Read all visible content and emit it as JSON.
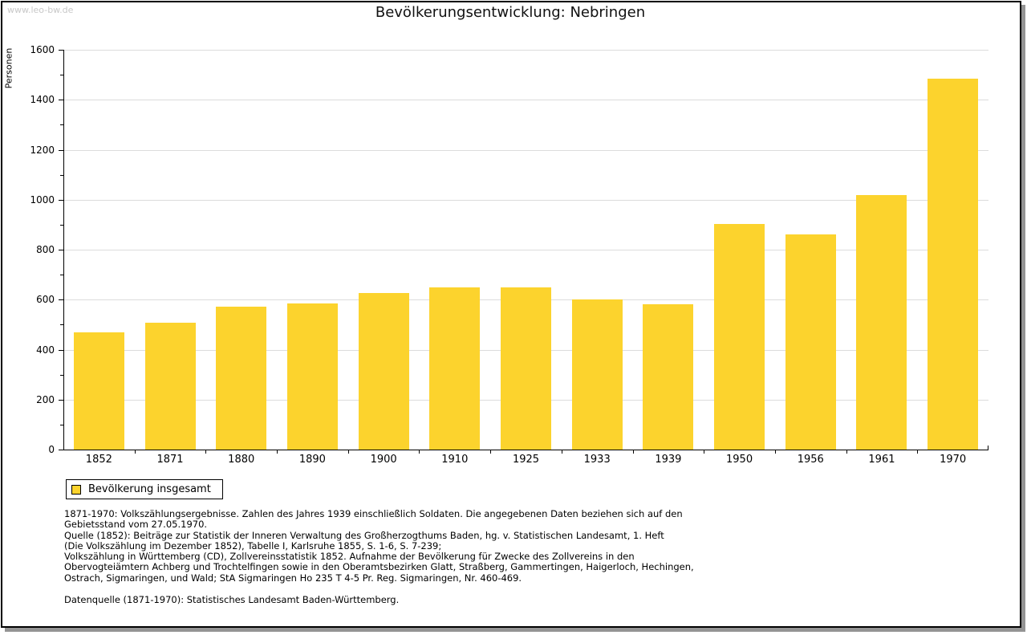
{
  "watermark": "www.leo-bw.de",
  "title": "Bevölkerungsentwicklung: Nebringen",
  "chart_data": {
    "type": "bar",
    "title": "Bevölkerungsentwicklung: Nebringen",
    "xlabel": "",
    "ylabel": "Personen",
    "ylim": [
      0,
      1600
    ],
    "ytick_major": 200,
    "ytick_minor": 100,
    "grid": "horizontal major gridlines on",
    "legend_position": "bottom-left, boxed",
    "categories": [
      "1852",
      "1871",
      "1880",
      "1890",
      "1900",
      "1910",
      "1925",
      "1933",
      "1939",
      "1950",
      "1956",
      "1961",
      "1970"
    ],
    "series": [
      {
        "name": "Bevölkerung insgesamt",
        "values": [
          470,
          508,
          572,
          585,
          627,
          648,
          648,
          600,
          581,
          903,
          860,
          1017,
          1483
        ]
      }
    ],
    "bar_color": "#FCD32D"
  },
  "legend": {
    "swatch_color": "#FCD32D"
  },
  "footnotes": [
    "1871-1970: Volkszählungsergebnisse. Zahlen des Jahres 1939 einschließlich Soldaten. Die angegebenen Daten beziehen sich auf den",
    "Gebietsstand vom 27.05.1970.",
    "Quelle (1852): Beiträge zur Statistik der Inneren Verwaltung des Großherzogthums Baden, hg. v. Statistischen Landesamt, 1. Heft",
    "(Die Volkszählung im Dezember 1852), Tabelle I, Karlsruhe 1855, S. 1-6, S. 7-239;",
    "Volkszählung in Württemberg (CD), Zollvereinsstatistik 1852. Aufnahme der Bevölkerung für Zwecke des Zollvereins in den",
    "Obervogteiämtern Achberg und Trochtelfingen sowie in den Oberamtsbezirken Glatt, Straßberg, Gammertingen, Haigerloch, Hechingen,",
    "Ostrach, Sigmaringen, und Wald; StA Sigmaringen Ho 235 T 4-5 Pr. Reg. Sigmaringen, Nr. 460-469."
  ],
  "datasource": "Datenquelle (1871-1970): Statistisches Landesamt Baden-Württemberg.",
  "colors": {
    "bar": "#FCD32D",
    "grid": "#DCDCDC",
    "axis": "#000000",
    "watermark": "#C8C8C8",
    "title_text": "#111111",
    "frame_border": "#000000",
    "frame_shadow": "#949494"
  }
}
